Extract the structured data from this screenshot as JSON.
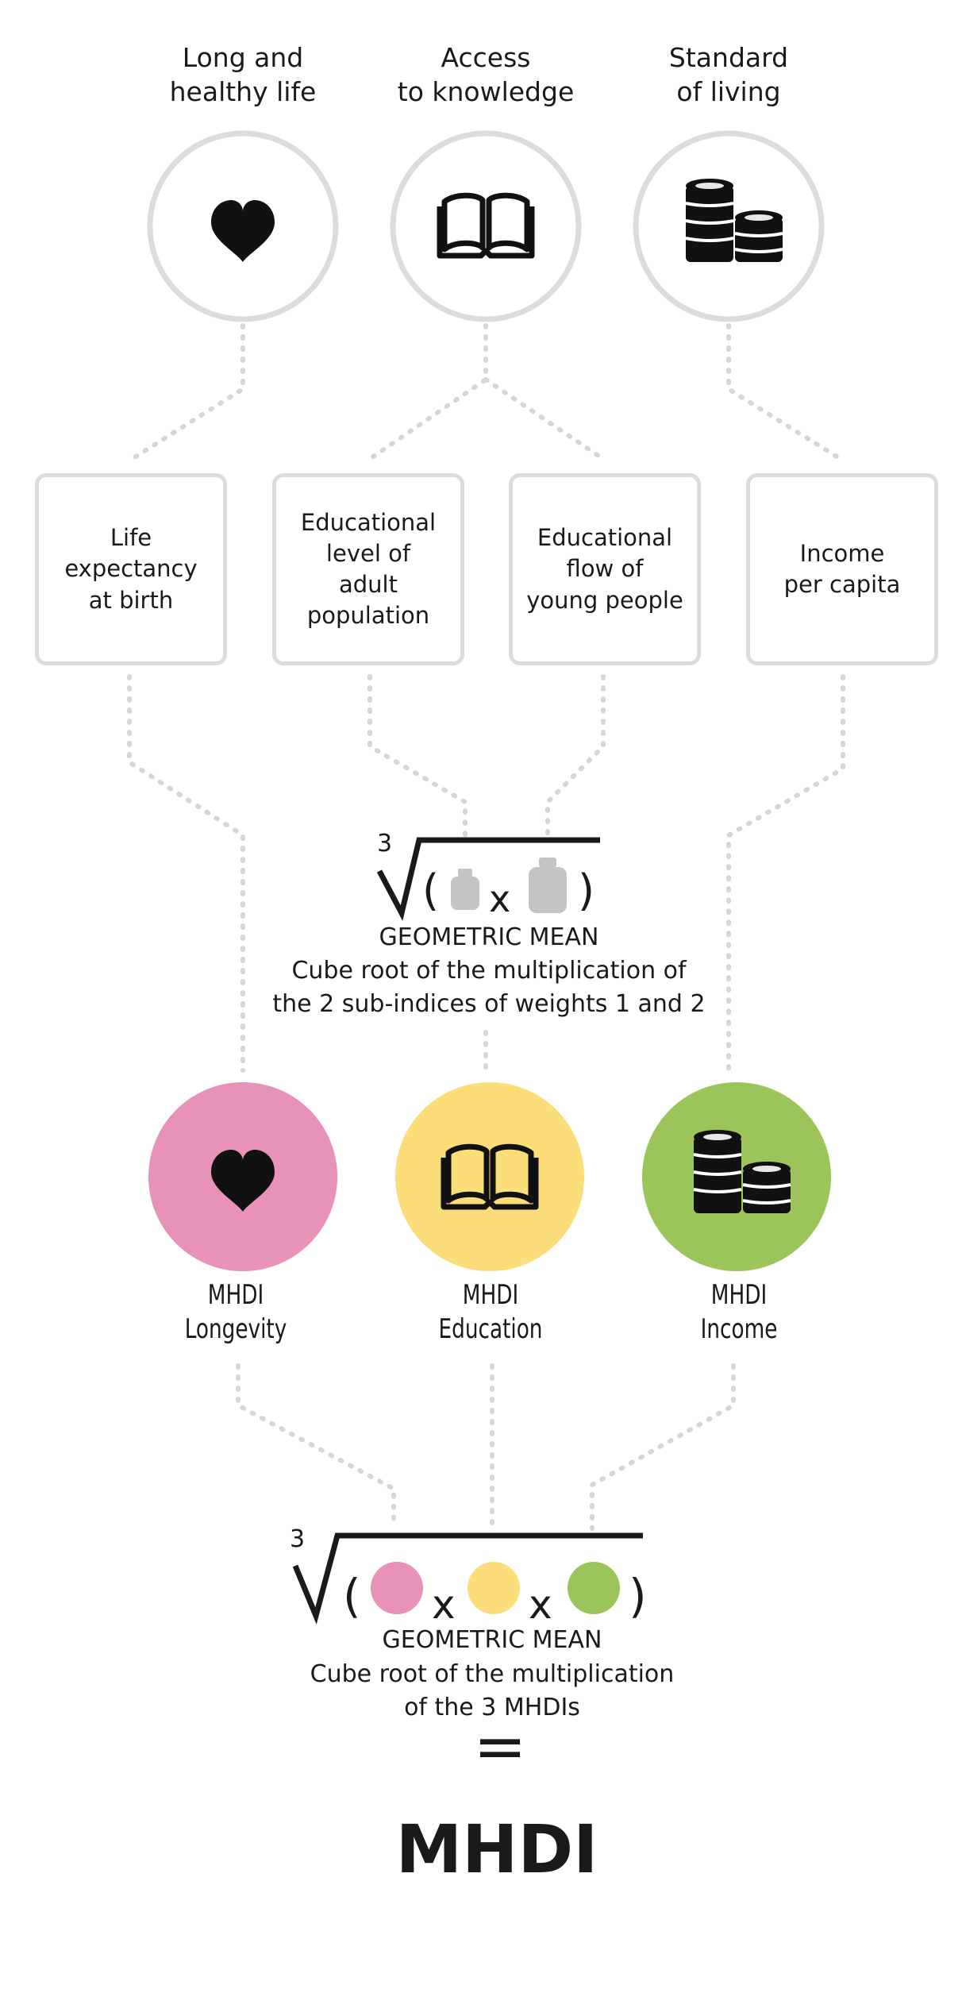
{
  "dimensions": [
    {
      "title": "Long and healthy life",
      "line1": "Long and",
      "line2": "healthy life",
      "icon": "heart-icon"
    },
    {
      "title": "Access to knowledge",
      "line1": "Access",
      "line2": "to knowledge",
      "icon": "book-icon"
    },
    {
      "title": "Standard of living",
      "line1": "Standard",
      "line2": "of living",
      "icon": "coins-icon"
    }
  ],
  "indicators": [
    {
      "label": "Life expectancy at birth",
      "lines": [
        "Life",
        "expectancy",
        "at birth"
      ]
    },
    {
      "label": "Educational level of adult population",
      "lines": [
        "Educational",
        "level of",
        "adult",
        "population"
      ]
    },
    {
      "label": "Educational flow of young people",
      "lines": [
        "Educational",
        "flow of",
        "young people"
      ]
    },
    {
      "label": "Income per capita",
      "lines": [
        "Income",
        "per capita"
      ]
    }
  ],
  "education_formula": {
    "root_index": "3",
    "operator": "x",
    "open_paren": "(",
    "close_paren": ")",
    "title": "GEOMETRIC MEAN",
    "desc_line1": "Cube root of the multiplication of",
    "desc_line2": "the 2 sub-indices of weights 1 and 2",
    "weight_icons": [
      "weight-1-icon",
      "weight-2-icon"
    ]
  },
  "subindices": [
    {
      "line1": "MHDI",
      "line2": "Longevity",
      "color": "#e891b9",
      "icon": "heart-icon"
    },
    {
      "line1": "MHDI",
      "line2": "Education",
      "color": "#fbdd7a",
      "icon": "book-icon"
    },
    {
      "line1": "MHDI",
      "line2": "Income",
      "color": "#9bc55a",
      "icon": "coins-icon"
    }
  ],
  "final_formula": {
    "root_index": "3",
    "operator": "x",
    "open_paren": "(",
    "close_paren": ")",
    "title": "GEOMETRIC MEAN",
    "desc_line1": "Cube root of the multiplication",
    "desc_line2": "of the 3 MHDIs",
    "equals": "="
  },
  "result": "MHDI",
  "colors": {
    "circle_outline": "#dcdcdc",
    "connector": "#d6d6d6",
    "icon": "#111111",
    "weight": "#c4c4c4",
    "longevity": "#e891b9",
    "education": "#fbdd7a",
    "income": "#9bc55a"
  }
}
